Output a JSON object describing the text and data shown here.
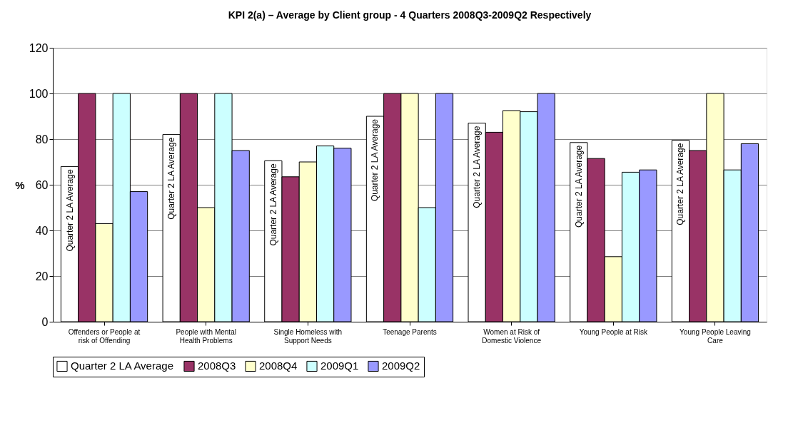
{
  "chart_data": {
    "type": "bar",
    "title": "KPI 2(a) – Average by Client group - 4 Quarters 2008Q3-2009Q2 Respectively",
    "ylabel": "%",
    "categories": [
      "Offenders or People at risk of Offending",
      "People with Mental Health Problems",
      "Single Homeless with Support Needs",
      "Teenage Parents",
      "Women at Risk of Domestic Violence",
      "Young People at Risk",
      "Young People Leaving Care"
    ],
    "series": [
      {
        "name": "Quarter 2 LA Average",
        "color": "#ffffff",
        "values": [
          68,
          82,
          70.5,
          90,
          87,
          78.5,
          79.5
        ]
      },
      {
        "name": "2008Q3",
        "color": "#993366",
        "values": [
          100,
          100,
          63.5,
          100,
          83,
          71.5,
          75
        ]
      },
      {
        "name": "2008Q4",
        "color": "#ffffcc",
        "values": [
          43,
          50,
          70,
          100,
          92.5,
          28.5,
          100
        ]
      },
      {
        "name": "2009Q1",
        "color": "#ccffff",
        "values": [
          100,
          100,
          77,
          50,
          92,
          65.5,
          66.5
        ]
      },
      {
        "name": "2009Q2",
        "color": "#9999ff",
        "values": [
          57,
          75,
          76,
          100,
          100,
          66.5,
          78
        ]
      }
    ],
    "ylim": [
      0,
      120
    ],
    "yticks": [
      0,
      20,
      40,
      60,
      80,
      100,
      120
    ],
    "grid": "y",
    "legend": "bottom"
  }
}
